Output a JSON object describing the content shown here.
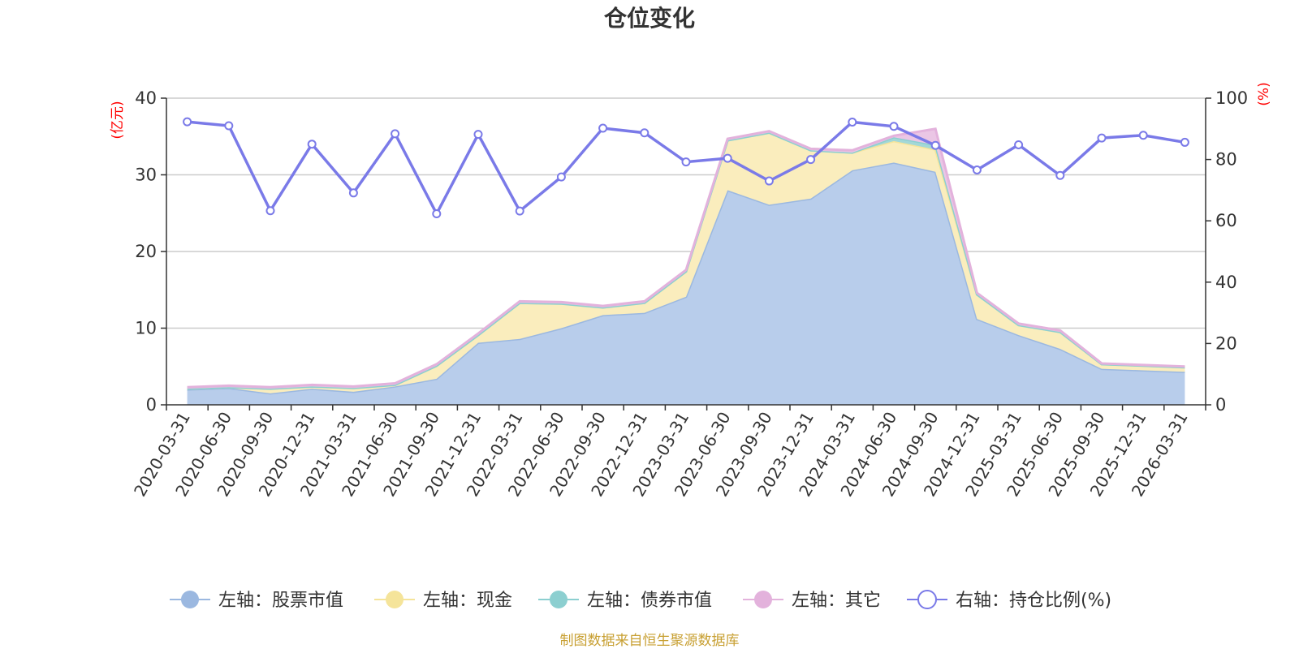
{
  "title": "仓位变化",
  "source": "制图数据来自恒生聚源数据库",
  "chart_data": {
    "type": "area",
    "title": "仓位变化",
    "left_axis_label": "(亿元)",
    "right_axis_label": "(%)",
    "left_ylim": [
      0,
      40
    ],
    "left_ticks": [
      0,
      10,
      20,
      30,
      40
    ],
    "right_ylim": [
      0,
      100
    ],
    "right_ticks": [
      0,
      20,
      40,
      60,
      80,
      100
    ],
    "categories": [
      "2020-03-31",
      "2020-06-30",
      "2020-09-30",
      "2020-12-31",
      "2021-03-31",
      "2021-06-30",
      "2021-09-30",
      "2021-12-31",
      "2022-03-31",
      "2022-06-30",
      "2022-09-30",
      "2022-12-31",
      "2023-03-31",
      "2023-06-30",
      "2023-09-30",
      "2023-12-31",
      "2024-03-31",
      "2024-06-30",
      "2024-09-30",
      "2024-12-31",
      "2025-03-31",
      "2025-06-30",
      "2025-09-30",
      "2025-12-31",
      "2026-03-31"
    ],
    "stacked_series": [
      {
        "name": "左轴：股票市值",
        "axis": "left",
        "color": "#9bb8e0",
        "fill": "#b8cdeb",
        "values": [
          2.0,
          2.2,
          1.5,
          2.1,
          1.7,
          2.4,
          3.4,
          8.1,
          8.6,
          10.0,
          11.7,
          12.0,
          14.1,
          28.0,
          26.1,
          26.9,
          30.6,
          31.6,
          30.4,
          11.2,
          9.1,
          7.3,
          4.7,
          4.5,
          4.3
        ]
      },
      {
        "name": "左轴：现金",
        "axis": "left",
        "color": "#f5e49a",
        "fill": "#faedbd",
        "values": [
          0.1,
          0.1,
          0.6,
          0.3,
          0.5,
          0.2,
          1.7,
          1.0,
          4.7,
          3.2,
          1.0,
          1.3,
          3.3,
          6.5,
          9.4,
          6.3,
          2.3,
          2.8,
          2.9,
          3.2,
          1.3,
          2.2,
          0.6,
          0.6,
          0.6
        ]
      },
      {
        "name": "左轴：债券市值",
        "axis": "left",
        "color": "#8ccfd0",
        "fill": "#a3d8d7",
        "values": [
          0,
          0,
          0,
          0,
          0,
          0,
          0,
          0,
          0,
          0,
          0,
          0,
          0,
          0,
          0,
          0,
          0,
          0.5,
          0.6,
          0,
          0,
          0,
          0,
          0,
          0
        ]
      },
      {
        "name": "左轴：其它",
        "axis": "left",
        "color": "#e3b2dc",
        "fill": "#ebc6e5",
        "values": [
          0.2,
          0.2,
          0.2,
          0.2,
          0.2,
          0.2,
          0.2,
          0.2,
          0.2,
          0.2,
          0.2,
          0.2,
          0.2,
          0.2,
          0.2,
          0.2,
          0.3,
          0.2,
          2.1,
          0.2,
          0.2,
          0.2,
          0.1,
          0.1,
          0.1
        ]
      }
    ],
    "line_series": {
      "name": "右轴：持仓比例(%)",
      "axis": "right",
      "color": "#7a7ae8",
      "values": [
        92.3,
        91.0,
        63.3,
        85.0,
        69.1,
        88.4,
        62.3,
        88.2,
        63.2,
        74.3,
        90.2,
        88.7,
        79.2,
        80.4,
        73.0,
        80.0,
        92.2,
        90.8,
        84.6,
        76.6,
        84.8,
        74.8,
        87.0,
        87.9,
        85.6
      ]
    }
  },
  "legend": [
    {
      "label": "左轴：股票市值",
      "type": "filled",
      "color": "#9bb8e0"
    },
    {
      "label": "左轴：现金",
      "type": "filled",
      "color": "#f5e49a"
    },
    {
      "label": "左轴：债券市值",
      "type": "filled",
      "color": "#8ccfd0"
    },
    {
      "label": "左轴：其它",
      "type": "filled",
      "color": "#e3b2dc"
    },
    {
      "label": "右轴：持仓比例(%)",
      "type": "hollow",
      "color": "#7a7ae8"
    }
  ]
}
